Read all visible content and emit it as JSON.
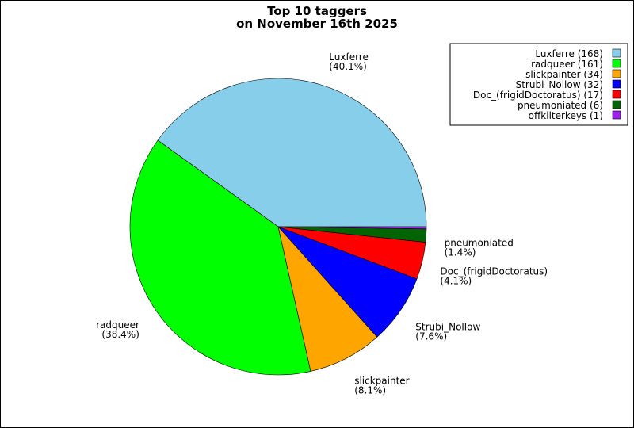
{
  "chart_data": {
    "type": "pie",
    "title_lines": [
      "Top 10 taggers",
      "on November 16th 2025"
    ],
    "slices": [
      {
        "name": "Luxferre",
        "value": 168,
        "percent": "40.1%",
        "color": "#87CEEB",
        "legend": "Luxferre (168)"
      },
      {
        "name": "radqueer",
        "value": 161,
        "percent": "38.4%",
        "color": "#00FF00",
        "legend": "radqueer (161)"
      },
      {
        "name": "slickpainter",
        "value": 34,
        "percent": "8.1%",
        "color": "#FFA500",
        "legend": "slickpainter (34)"
      },
      {
        "name": "Strubi_Nollow",
        "value": 32,
        "percent": "7.6%",
        "color": "#0000FF",
        "legend": "Strubi_Nollow (32)"
      },
      {
        "name": "Doc_(frigidDoctoratus)",
        "value": 17,
        "percent": "4.1%",
        "color": "#FF0000",
        "legend": "Doc_(frigidDoctoratus) (17)"
      },
      {
        "name": "pneumoniated",
        "value": 6,
        "percent": "1.4%",
        "color": "#006400",
        "legend": "pneumoniated (6)"
      },
      {
        "name": "offkilterkeys",
        "value": 1,
        "percent": "",
        "color": "#A020F0",
        "legend": "offkilterkeys (1)"
      }
    ],
    "legend_position": "top-right"
  }
}
